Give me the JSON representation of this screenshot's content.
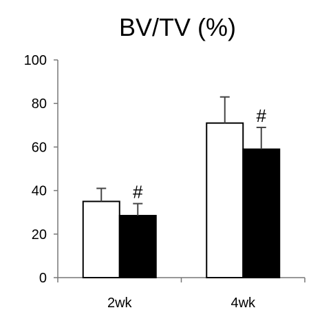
{
  "chart_data": {
    "type": "bar",
    "title": "BV/TV (%)",
    "xlabel": "",
    "ylabel": "",
    "categories": [
      "2wk",
      "4wk"
    ],
    "ylim": [
      0,
      100
    ],
    "yticks": [
      0,
      20,
      40,
      60,
      80,
      100
    ],
    "grid": false,
    "legend": "none",
    "series": [
      {
        "fill": "#ffffff",
        "values": [
          35,
          71
        ],
        "errors": [
          6,
          12
        ],
        "annotations": [
          "",
          ""
        ]
      },
      {
        "fill": "#000000",
        "values": [
          28.5,
          59
        ],
        "errors": [
          5.5,
          10
        ],
        "annotations": [
          "#",
          "#"
        ]
      }
    ]
  }
}
